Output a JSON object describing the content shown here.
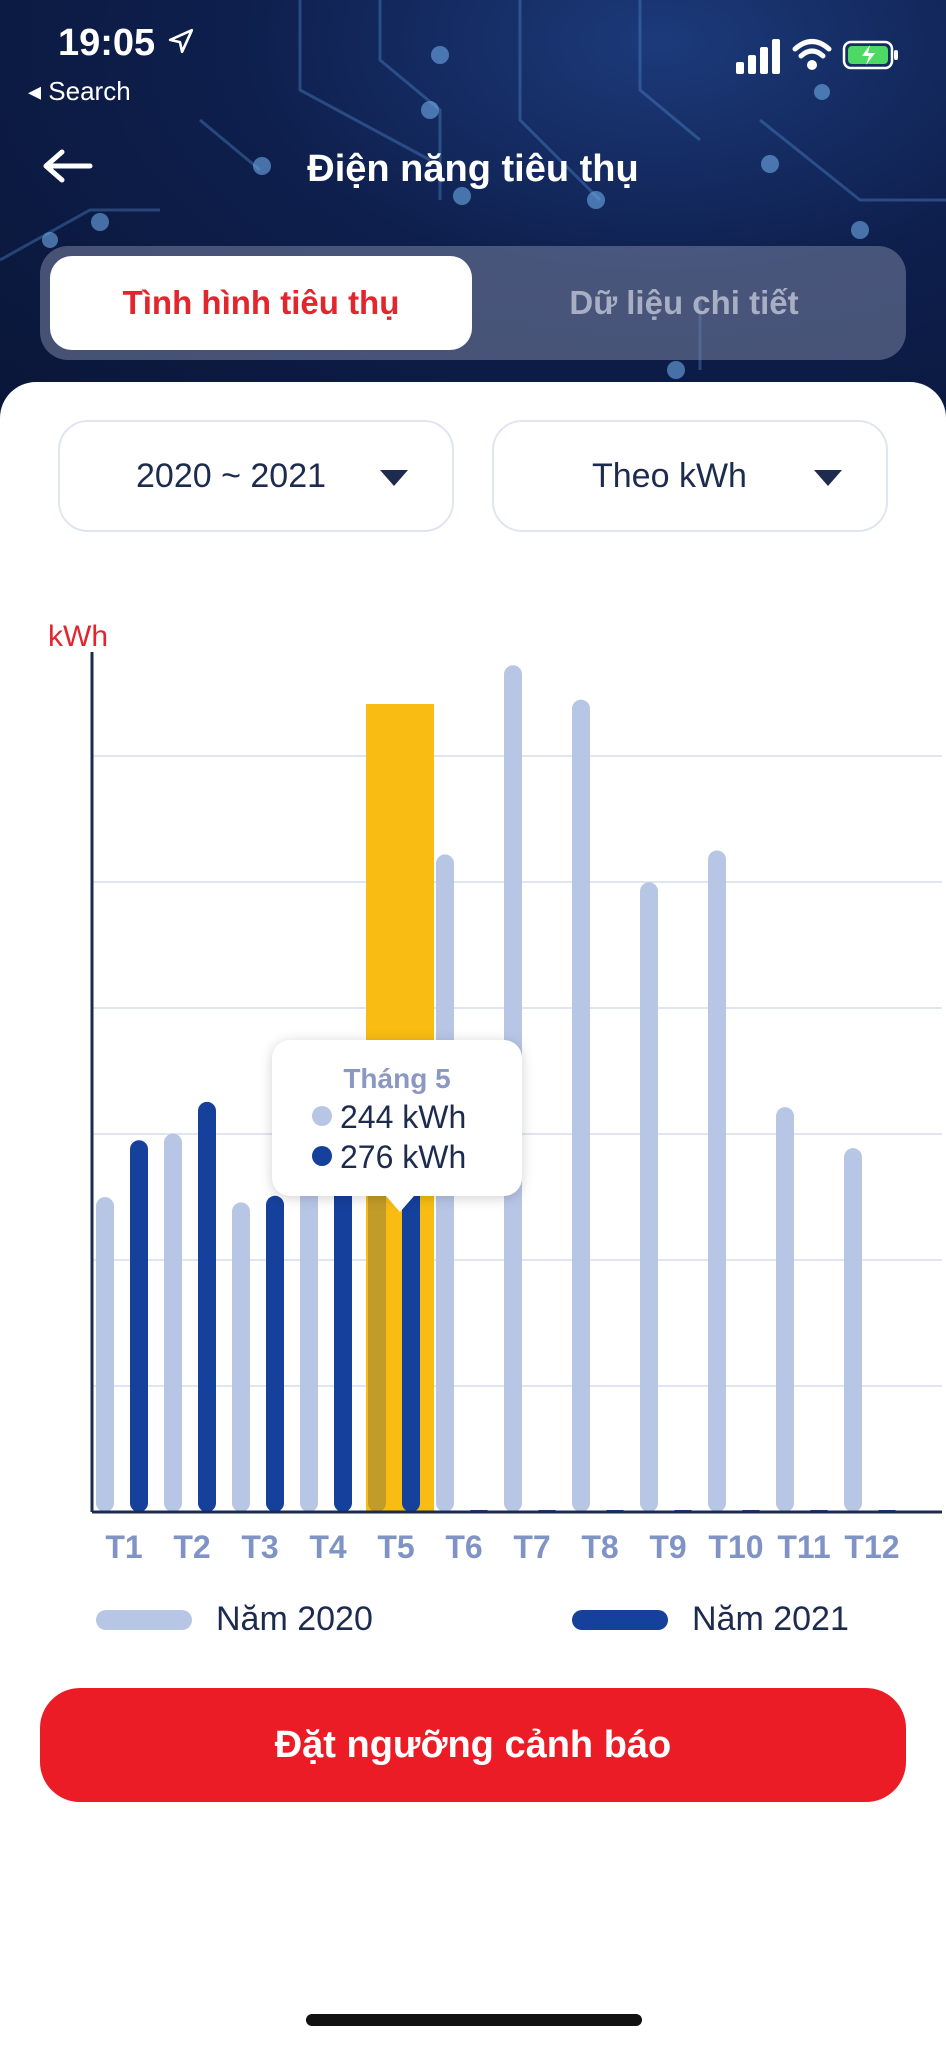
{
  "status": {
    "time": "19:05",
    "back_app": "◂ Search"
  },
  "header": {
    "title": "Điện năng tiêu thụ"
  },
  "tabs": [
    {
      "label": "Tình hình tiêu thụ",
      "active": true
    },
    {
      "label": "Dữ liệu chi tiết",
      "active": false
    }
  ],
  "filters": {
    "year_range": "2020 ~ 2021",
    "unit": "Theo kWh"
  },
  "chart_data": {
    "type": "bar",
    "ylabel": "kWh",
    "categories": [
      "T1",
      "T2",
      "T3",
      "T4",
      "T5",
      "T6",
      "T7",
      "T8",
      "T9",
      "T10",
      "T11",
      "T12"
    ],
    "series": [
      {
        "name": "Năm 2020",
        "color": "#b8c6e6",
        "values": [
          238,
          286,
          234,
          245,
          244,
          497,
          640,
          614,
          476,
          500,
          306,
          275
        ]
      },
      {
        "name": "Năm 2021",
        "color": "#15409c",
        "values": [
          281,
          310,
          239,
          263,
          276,
          0,
          0,
          0,
          0,
          0,
          0,
          0
        ]
      }
    ],
    "ylim": [
      0,
      650
    ],
    "gridlines": 6,
    "highlight": {
      "index": 4,
      "color": "#f8bc13"
    },
    "tooltip": {
      "title": "Tháng 5",
      "lines": [
        "244 kWh",
        "276 kWh"
      ]
    }
  },
  "legend": [
    {
      "label": "Năm 2020",
      "color": "#b8c6e6"
    },
    {
      "label": "Năm 2021",
      "color": "#15409c"
    }
  ],
  "actions": {
    "alert_button": "Đặt ngưỡng cảnh báo"
  }
}
